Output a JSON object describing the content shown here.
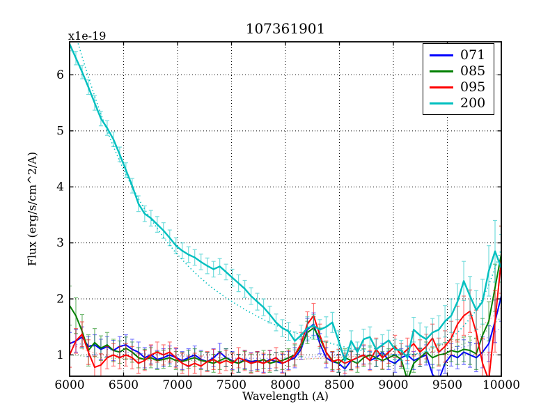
{
  "chart_data": {
    "type": "line",
    "title": "107361901",
    "xlabel": "Wavelength (A)",
    "ylabel": "Flux (erg/s/cm^2/A)",
    "y_offset_label": "x1e-19",
    "xlim": [
      6000,
      10000
    ],
    "ylim": [
      0.62,
      6.59
    ],
    "xticks": [
      6000,
      6500,
      7000,
      7500,
      8000,
      8500,
      9000,
      9500,
      10000
    ],
    "yticks": [
      1,
      2,
      3,
      4,
      5,
      6
    ],
    "grid": true,
    "grid_style": "dotted",
    "legend_position": "upper right",
    "x": {
      "start": 6000,
      "step": 57.971,
      "n": 70
    },
    "series": [
      {
        "name": "071",
        "color": "#0000ff",
        "values": [
          1.2,
          1.25,
          1.32,
          1.15,
          1.18,
          1.1,
          1.15,
          1.08,
          1.15,
          1.18,
          1.1,
          1.05,
          0.95,
          1.0,
          0.92,
          0.95,
          1.0,
          0.95,
          0.9,
          0.95,
          1.0,
          0.92,
          0.88,
          0.95,
          1.05,
          0.95,
          0.9,
          0.85,
          0.92,
          0.88,
          0.9,
          0.85,
          0.92,
          0.88,
          0.85,
          0.9,
          0.95,
          1.1,
          1.45,
          1.55,
          1.2,
          0.95,
          0.88,
          0.85,
          0.75,
          0.9,
          0.95,
          1.0,
          0.9,
          0.95,
          1.05,
          0.9,
          0.85,
          0.95,
          1.0,
          0.9,
          0.95,
          1.0,
          0.65,
          0.55,
          0.85,
          1.0,
          0.95,
          1.05,
          1.0,
          0.95,
          1.05,
          1.2,
          1.6,
          2.05
        ],
        "err": [
          0.2,
          0.2,
          0.18,
          0.18,
          0.18,
          0.18,
          0.18,
          0.18,
          0.18,
          0.18,
          0.18,
          0.18,
          0.18,
          0.16,
          0.16,
          0.16,
          0.16,
          0.16,
          0.16,
          0.16,
          0.16,
          0.16,
          0.16,
          0.16,
          0.16,
          0.16,
          0.16,
          0.16,
          0.16,
          0.16,
          0.16,
          0.16,
          0.16,
          0.16,
          0.16,
          0.16,
          0.18,
          0.18,
          0.2,
          0.2,
          0.18,
          0.18,
          0.16,
          0.16,
          0.16,
          0.16,
          0.16,
          0.16,
          0.16,
          0.16,
          0.16,
          0.16,
          0.16,
          0.16,
          0.16,
          0.16,
          0.16,
          0.18,
          0.18,
          0.18,
          0.18,
          0.2,
          0.2,
          0.22,
          0.22,
          0.25,
          0.28,
          0.32,
          0.38,
          0.45
        ]
      },
      {
        "name": "085",
        "color": "#007f00",
        "values": [
          1.88,
          1.7,
          1.42,
          1.08,
          1.22,
          1.12,
          1.18,
          1.08,
          1.05,
          1.12,
          1.05,
          0.95,
          0.92,
          0.95,
          0.9,
          0.92,
          0.95,
          0.9,
          0.88,
          0.92,
          0.95,
          0.9,
          0.88,
          0.85,
          0.9,
          0.95,
          0.88,
          0.85,
          0.9,
          0.85,
          0.88,
          0.92,
          0.85,
          0.88,
          0.9,
          0.95,
          1.0,
          1.15,
          1.4,
          1.48,
          1.3,
          1.05,
          0.9,
          0.85,
          0.95,
          0.9,
          0.85,
          0.95,
          1.0,
          0.95,
          0.9,
          0.95,
          1.0,
          0.92,
          0.55,
          0.85,
          0.95,
          1.05,
          0.95,
          1.0,
          1.02,
          1.08,
          1.05,
          1.1,
          1.08,
          1.02,
          1.35,
          1.6,
          2.2,
          2.8
        ],
        "err": [
          0.35,
          0.32,
          0.3,
          0.28,
          0.25,
          0.22,
          0.22,
          0.2,
          0.2,
          0.2,
          0.18,
          0.18,
          0.18,
          0.18,
          0.16,
          0.16,
          0.16,
          0.16,
          0.16,
          0.16,
          0.16,
          0.16,
          0.16,
          0.16,
          0.16,
          0.16,
          0.16,
          0.16,
          0.16,
          0.16,
          0.16,
          0.16,
          0.16,
          0.16,
          0.16,
          0.16,
          0.18,
          0.18,
          0.2,
          0.2,
          0.18,
          0.18,
          0.16,
          0.16,
          0.16,
          0.16,
          0.16,
          0.16,
          0.16,
          0.16,
          0.16,
          0.16,
          0.16,
          0.16,
          0.16,
          0.16,
          0.16,
          0.18,
          0.18,
          0.18,
          0.2,
          0.2,
          0.22,
          0.22,
          0.25,
          0.28,
          0.3,
          0.35,
          0.42,
          0.5
        ]
      },
      {
        "name": "095",
        "color": "#ff0000",
        "values": [
          1.0,
          1.25,
          1.37,
          1.05,
          0.78,
          0.82,
          0.95,
          1.0,
          0.95,
          1.0,
          0.95,
          0.85,
          0.9,
          1.0,
          1.05,
          1.0,
          1.05,
          0.95,
          0.85,
          0.8,
          0.85,
          0.8,
          0.88,
          0.92,
          0.85,
          0.9,
          0.85,
          0.95,
          0.9,
          0.85,
          0.88,
          0.85,
          0.9,
          0.95,
          0.85,
          0.9,
          1.0,
          1.2,
          1.55,
          1.7,
          1.35,
          1.05,
          0.88,
          0.92,
          0.85,
          0.9,
          0.95,
          1.0,
          0.9,
          1.1,
          0.95,
          1.05,
          1.15,
          1.0,
          1.1,
          1.2,
          1.05,
          1.15,
          1.3,
          1.05,
          1.15,
          1.3,
          1.55,
          1.7,
          1.78,
          1.4,
          0.85,
          0.55,
          1.6,
          2.7
        ],
        "err": [
          0.22,
          0.22,
          0.22,
          0.22,
          0.2,
          0.2,
          0.2,
          0.2,
          0.2,
          0.2,
          0.2,
          0.18,
          0.18,
          0.18,
          0.18,
          0.18,
          0.18,
          0.18,
          0.18,
          0.18,
          0.18,
          0.18,
          0.18,
          0.18,
          0.18,
          0.18,
          0.18,
          0.18,
          0.18,
          0.18,
          0.18,
          0.18,
          0.18,
          0.18,
          0.18,
          0.18,
          0.2,
          0.2,
          0.22,
          0.22,
          0.2,
          0.2,
          0.18,
          0.18,
          0.18,
          0.18,
          0.18,
          0.18,
          0.18,
          0.2,
          0.2,
          0.2,
          0.2,
          0.2,
          0.2,
          0.22,
          0.22,
          0.22,
          0.25,
          0.25,
          0.28,
          0.3,
          0.32,
          0.35,
          0.38,
          0.4,
          0.45,
          0.5,
          0.55,
          0.6
        ]
      },
      {
        "name": "200",
        "color": "#00bfbf",
        "values": [
          6.55,
          6.3,
          6.05,
          5.78,
          5.5,
          5.22,
          5.05,
          4.85,
          4.58,
          4.3,
          4.02,
          3.7,
          3.52,
          3.44,
          3.33,
          3.22,
          3.09,
          2.95,
          2.86,
          2.79,
          2.74,
          2.66,
          2.59,
          2.53,
          2.58,
          2.48,
          2.38,
          2.28,
          2.18,
          2.05,
          1.95,
          1.85,
          1.72,
          1.58,
          1.48,
          1.42,
          1.25,
          1.35,
          1.48,
          1.52,
          1.45,
          1.5,
          1.58,
          1.25,
          0.9,
          1.25,
          1.05,
          1.28,
          1.32,
          1.1,
          1.18,
          1.26,
          1.1,
          1.08,
          0.95,
          1.45,
          1.35,
          1.28,
          1.4,
          1.45,
          1.6,
          1.7,
          1.95,
          2.32,
          2.05,
          1.8,
          1.95,
          2.5,
          2.85,
          2.55
        ],
        "err": [
          0.12,
          0.12,
          0.12,
          0.13,
          0.13,
          0.13,
          0.13,
          0.13,
          0.13,
          0.13,
          0.13,
          0.14,
          0.14,
          0.14,
          0.14,
          0.14,
          0.14,
          0.14,
          0.14,
          0.14,
          0.14,
          0.14,
          0.14,
          0.14,
          0.14,
          0.14,
          0.15,
          0.15,
          0.15,
          0.15,
          0.15,
          0.15,
          0.15,
          0.15,
          0.15,
          0.16,
          0.16,
          0.18,
          0.2,
          0.2,
          0.18,
          0.18,
          0.18,
          0.18,
          0.18,
          0.18,
          0.18,
          0.18,
          0.18,
          0.18,
          0.18,
          0.18,
          0.18,
          0.18,
          0.2,
          0.22,
          0.22,
          0.22,
          0.25,
          0.25,
          0.28,
          0.3,
          0.32,
          0.35,
          0.35,
          0.35,
          0.4,
          0.45,
          0.55,
          0.6
        ]
      }
    ],
    "models": [
      {
        "for": "200",
        "color": "#00bfbf",
        "style": "dotted",
        "values": [
          7.1,
          6.7,
          6.32,
          5.96,
          5.62,
          5.3,
          5.0,
          4.72,
          4.46,
          4.22,
          4.0,
          3.79,
          3.6,
          3.42,
          3.26,
          3.1,
          2.96,
          2.82,
          2.7,
          2.58,
          2.47,
          2.37,
          2.27,
          2.18,
          2.1,
          2.02,
          1.95,
          1.88,
          1.81,
          1.75,
          1.69,
          1.63,
          1.58,
          1.53,
          1.48,
          1.44,
          1.4,
          1.36,
          1.32,
          1.29,
          1.26,
          1.23,
          1.2,
          1.17,
          1.14,
          1.11,
          1.09,
          1.07,
          1.05,
          1.03,
          1.02,
          1.01,
          1.0,
          1.0,
          1.0,
          1.01,
          1.03,
          1.07,
          1.11,
          1.16,
          1.22,
          1.3,
          1.4,
          1.52,
          1.65,
          1.8,
          2.0,
          2.25,
          2.55,
          2.9
        ]
      },
      {
        "for": "071",
        "color": "#0000ff",
        "style": "dotted",
        "values": [
          1.15,
          1.18,
          1.2,
          1.18,
          1.15,
          1.12,
          1.1,
          1.08,
          1.06,
          1.05,
          1.04,
          1.03,
          1.02,
          1.01,
          1.0,
          1.0,
          0.99,
          0.98,
          0.98,
          0.97,
          0.97,
          0.96,
          0.96,
          0.95,
          0.95,
          0.95,
          0.94,
          0.94,
          0.94,
          0.94,
          0.94,
          0.94,
          0.94,
          0.94,
          0.94,
          0.95,
          0.95,
          0.96,
          0.96,
          0.97,
          0.97,
          0.98,
          0.98,
          0.99,
          0.99,
          1.0,
          1.0,
          1.0,
          1.0,
          1.0,
          1.0,
          1.0,
          1.0,
          1.0,
          1.0,
          1.01,
          1.02,
          1.03,
          1.04,
          1.05,
          1.07,
          1.09,
          1.11,
          1.14,
          1.17,
          1.21,
          1.26,
          1.32,
          1.4,
          1.5
        ]
      },
      {
        "for": "085",
        "color": "#007f00",
        "style": "dotted",
        "values": [
          1.0,
          0.99,
          0.98,
          0.97,
          0.96,
          0.95,
          0.95,
          0.94,
          0.94,
          0.93,
          0.93,
          0.92,
          0.92,
          0.92,
          0.91,
          0.91,
          0.91,
          0.9,
          0.9,
          0.9,
          0.9,
          0.9,
          0.9,
          0.9,
          0.9,
          0.9,
          0.9,
          0.9,
          0.9,
          0.9,
          0.9,
          0.9,
          0.9,
          0.91,
          0.91,
          0.91,
          0.92,
          0.92,
          0.93,
          0.93,
          0.94,
          0.94,
          0.95,
          0.95,
          0.96,
          0.96,
          0.97,
          0.97,
          0.98,
          0.98,
          0.99,
          0.99,
          1.0,
          1.0,
          1.01,
          1.02,
          1.03,
          1.04,
          1.06,
          1.08,
          1.1,
          1.13,
          1.16,
          1.2,
          1.25,
          1.31,
          1.38,
          1.46,
          1.56,
          1.68
        ]
      },
      {
        "for": "095",
        "color": "#ff0000",
        "style": "dotted",
        "values": [
          1.2,
          1.15,
          1.11,
          1.07,
          1.04,
          1.01,
          0.99,
          0.97,
          0.95,
          0.94,
          0.93,
          0.92,
          0.91,
          0.9,
          0.9,
          0.89,
          0.89,
          0.89,
          0.88,
          0.88,
          0.88,
          0.88,
          0.88,
          0.88,
          0.88,
          0.88,
          0.88,
          0.88,
          0.89,
          0.89,
          0.89,
          0.9,
          0.9,
          0.9,
          0.91,
          0.91,
          0.92,
          0.92,
          0.93,
          0.94,
          0.94,
          0.95,
          0.95,
          0.96,
          0.97,
          0.97,
          0.98,
          0.99,
          0.99,
          1.0,
          1.01,
          1.02,
          1.03,
          1.04,
          1.05,
          1.07,
          1.09,
          1.11,
          1.13,
          1.16,
          1.19,
          1.23,
          1.27,
          1.32,
          1.38,
          1.45,
          1.53,
          1.62,
          1.72,
          1.84
        ]
      }
    ]
  },
  "legend": {
    "entries": [
      {
        "label": "071",
        "color": "#0000ff"
      },
      {
        "label": "085",
        "color": "#007f00"
      },
      {
        "label": "095",
        "color": "#ff0000"
      },
      {
        "label": "200",
        "color": "#00bfbf"
      }
    ]
  },
  "colors": {
    "axes": "#000000",
    "background": "#ffffff"
  }
}
